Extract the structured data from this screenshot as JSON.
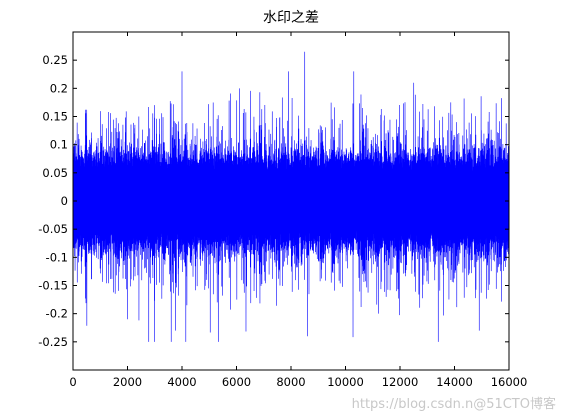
{
  "chart_data": {
    "type": "line",
    "title": "水印之差",
    "xlabel": "",
    "ylabel": "",
    "xlim": [
      0,
      16000
    ],
    "ylim": [
      -0.3,
      0.3
    ],
    "xticks": [
      0,
      2000,
      4000,
      6000,
      8000,
      10000,
      12000,
      14000,
      16000
    ],
    "yticks": [
      -0.25,
      -0.2,
      -0.15,
      -0.1,
      -0.05,
      0,
      0.05,
      0.1,
      0.15,
      0.2,
      0.25
    ],
    "xtick_labels": [
      "0",
      "2000",
      "4000",
      "6000",
      "8000",
      "10000",
      "12000",
      "14000",
      "16000"
    ],
    "ytick_labels": [
      "-0.25",
      "-0.2",
      "-0.15",
      "-0.1",
      "-0.05",
      "0",
      "0.05",
      "0.1",
      "0.15",
      "0.2",
      "0.25"
    ],
    "grid": false,
    "series": [
      {
        "color": "#0000ff",
        "n_samples": 16000,
        "approx_max": 0.265,
        "approx_min": -0.25,
        "dense_band": [
          -0.1,
          0.1
        ],
        "peaks": [
          {
            "x": 4000,
            "y": 0.23
          },
          {
            "x": 6100,
            "y": 0.2
          },
          {
            "x": 7900,
            "y": 0.23
          },
          {
            "x": 8500,
            "y": 0.265
          },
          {
            "x": 10300,
            "y": 0.23
          },
          {
            "x": 12500,
            "y": 0.21
          },
          {
            "x": 2000,
            "y": -0.21
          },
          {
            "x": 3750,
            "y": -0.23
          },
          {
            "x": 8600,
            "y": -0.24
          },
          {
            "x": 11200,
            "y": -0.2
          },
          {
            "x": 13400,
            "y": -0.25
          },
          {
            "x": 14900,
            "y": -0.23
          }
        ]
      }
    ]
  },
  "watermark": {
    "text": "https://blog.csdn.n@51CTO博客"
  }
}
